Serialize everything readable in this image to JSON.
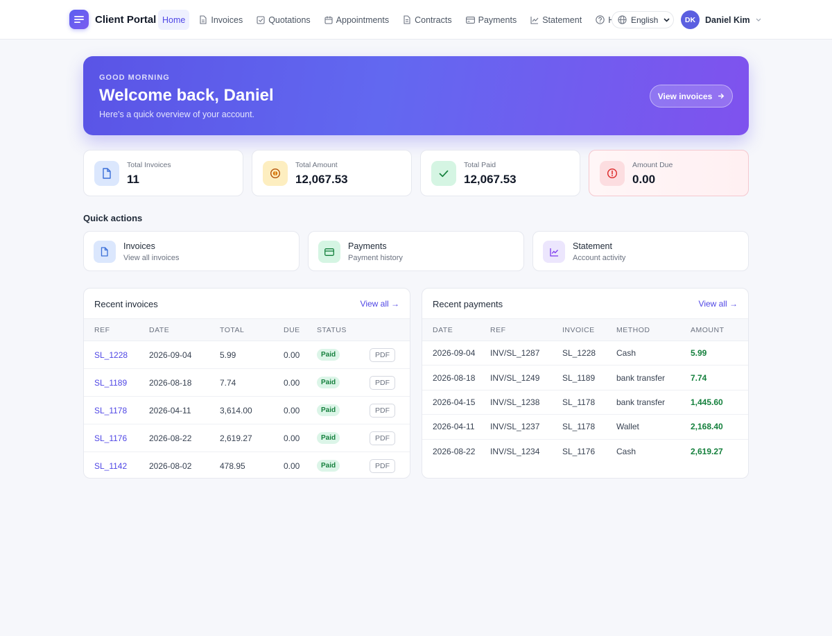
{
  "brand": {
    "name": "Client Portal"
  },
  "nav": {
    "items": [
      {
        "label": "Home",
        "icon": "home",
        "active": true
      },
      {
        "label": "Invoices",
        "icon": "file-icon"
      },
      {
        "label": "Quotations",
        "icon": "check-square-icon"
      },
      {
        "label": "Appointments",
        "icon": "calendar-icon"
      },
      {
        "label": "Contracts",
        "icon": "document-icon"
      },
      {
        "label": "Payments",
        "icon": "card-icon"
      },
      {
        "label": "Statement",
        "icon": "chart-icon"
      },
      {
        "label": "Help",
        "icon": "help-icon"
      }
    ]
  },
  "language": {
    "label": "English"
  },
  "user": {
    "initials": "DK",
    "name": "Daniel Kim"
  },
  "hero": {
    "eyebrow": "GOOD MORNING",
    "title": "Welcome back, Daniel",
    "subtitle": "Here's a quick overview of your account.",
    "button": "View invoices"
  },
  "stats": [
    {
      "label": "Total Invoices",
      "value": "11",
      "icon": "file-icon",
      "color": "#dbe7fd"
    },
    {
      "label": "Total Amount",
      "value": "12,067.53",
      "icon": "coin-icon",
      "color": "#fdeec0"
    },
    {
      "label": "Total Paid",
      "value": "12,067.53",
      "icon": "check-icon",
      "color": "#d5f5e3"
    },
    {
      "label": "Amount Due",
      "value": "0.00",
      "icon": "alert-icon",
      "color": "#fcdde0"
    }
  ],
  "quick_actions": {
    "title": "Quick actions",
    "items": [
      {
        "title": "Invoices",
        "subtitle": "View all invoices",
        "icon": "file-icon"
      },
      {
        "title": "Payments",
        "subtitle": "Payment history",
        "icon": "card-icon"
      },
      {
        "title": "Statement",
        "subtitle": "Account activity",
        "icon": "chart-icon"
      }
    ]
  },
  "recent_invoices": {
    "title": "Recent invoices",
    "view_all": "View all →",
    "columns": [
      "REF",
      "DATE",
      "TOTAL",
      "DUE",
      "STATUS",
      ""
    ],
    "rows": [
      {
        "ref": "SL_1228",
        "date": "2026-09-04",
        "total": "5.99",
        "due": "0.00",
        "status": "Paid",
        "pdf": "PDF"
      },
      {
        "ref": "SL_1189",
        "date": "2026-08-18",
        "total": "7.74",
        "due": "0.00",
        "status": "Paid",
        "pdf": "PDF"
      },
      {
        "ref": "SL_1178",
        "date": "2026-04-11",
        "total": "3,614.00",
        "due": "0.00",
        "status": "Paid",
        "pdf": "PDF"
      },
      {
        "ref": "SL_1176",
        "date": "2026-08-22",
        "total": "2,619.27",
        "due": "0.00",
        "status": "Paid",
        "pdf": "PDF"
      },
      {
        "ref": "SL_1142",
        "date": "2026-08-02",
        "total": "478.95",
        "due": "0.00",
        "status": "Paid",
        "pdf": "PDF"
      }
    ]
  },
  "recent_payments": {
    "title": "Recent payments",
    "view_all": "View all →",
    "columns": [
      "DATE",
      "REF",
      "INVOICE",
      "METHOD",
      "AMOUNT"
    ],
    "rows": [
      {
        "date": "2026-09-04",
        "ref": "INV/SL_1287",
        "invoice": "SL_1228",
        "method": "Cash",
        "amount": "5.99"
      },
      {
        "date": "2026-08-18",
        "ref": "INV/SL_1249",
        "invoice": "SL_1189",
        "method": "bank transfer",
        "amount": "7.74"
      },
      {
        "date": "2026-04-15",
        "ref": "INV/SL_1238",
        "invoice": "SL_1178",
        "method": "bank transfer",
        "amount": "1,445.60"
      },
      {
        "date": "2026-04-11",
        "ref": "INV/SL_1237",
        "invoice": "SL_1178",
        "method": "Wallet",
        "amount": "2,168.40"
      },
      {
        "date": "2026-08-22",
        "ref": "INV/SL_1234",
        "invoice": "SL_1176",
        "method": "Cash",
        "amount": "2,619.27"
      }
    ]
  }
}
